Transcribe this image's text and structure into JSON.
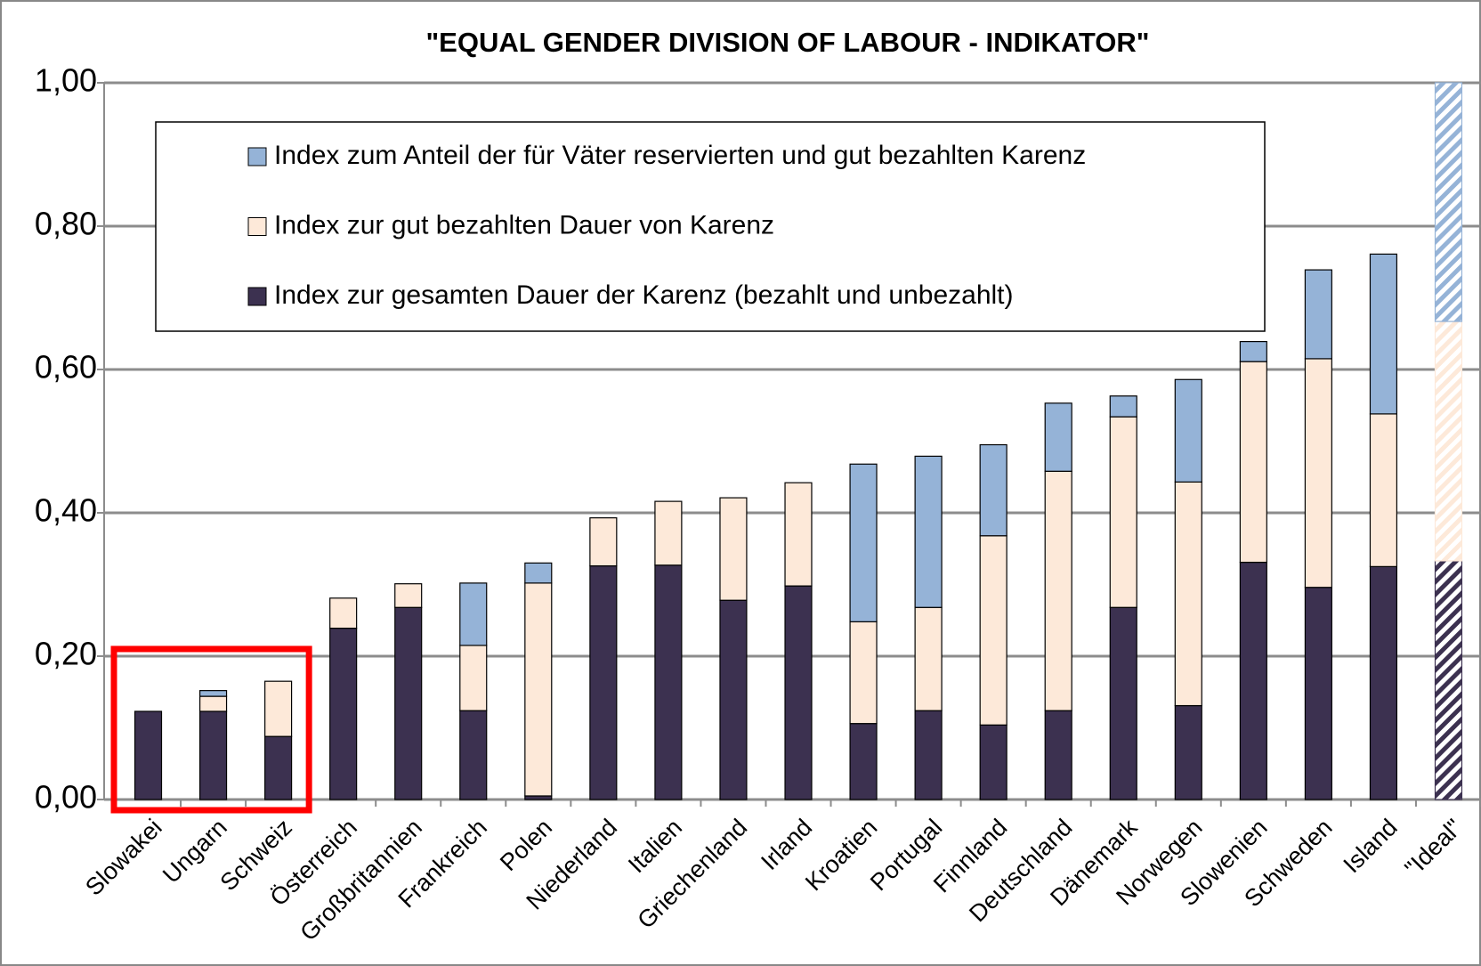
{
  "chart_data": {
    "type": "stacked_bar",
    "title": "\"EQUAL GENDER DIVISION OF LABOUR - INDIKATOR\"",
    "categories": [
      "Slowakei",
      "Ungarn",
      "Schweiz",
      "Österreich",
      "Großbritannien",
      "Frankreich",
      "Polen",
      "Niederland",
      "Italien",
      "Griechenland",
      "Irland",
      "Kroatien",
      "Portugal",
      "Finnland",
      "Deutschland",
      "Dänemark",
      "Norwegen",
      "Slowenien",
      "Schweden",
      "Island",
      "\"Ideal\""
    ],
    "series": [
      {
        "name": "Index zur gesamten Dauer der Karenz (bezahlt und unbezahlt)",
        "color": "#3c3150",
        "values": [
          0.123,
          0.123,
          0.088,
          0.239,
          0.268,
          0.124,
          0.005,
          0.326,
          0.327,
          0.278,
          0.298,
          0.106,
          0.124,
          0.104,
          0.124,
          0.268,
          0.131,
          0.331,
          0.296,
          0.325,
          0.333
        ]
      },
      {
        "name": "Index zur gut bezahlten Dauer von Karenz",
        "color": "#fde9d9",
        "values": [
          0,
          0.021,
          0.077,
          0.042,
          0.033,
          0.091,
          0.297,
          0.067,
          0.089,
          0.143,
          0.144,
          0.142,
          0.144,
          0.264,
          0.334,
          0.266,
          0.312,
          0.28,
          0.319,
          0.213,
          0.334
        ]
      },
      {
        "name": "Index zum Anteil der für Väter reservierten und gut bezahlten Karenz",
        "color": "#95b3d7",
        "values": [
          0,
          0.008,
          0,
          0,
          0,
          0.087,
          0.028,
          0,
          0,
          0,
          0,
          0.22,
          0.211,
          0.127,
          0.095,
          0.029,
          0.143,
          0.028,
          0.124,
          0.223,
          0.333
        ]
      }
    ],
    "hatched": [
      false,
      false,
      false,
      false,
      false,
      false,
      false,
      false,
      false,
      false,
      false,
      false,
      false,
      false,
      false,
      false,
      false,
      false,
      false,
      false,
      true
    ],
    "ylim": [
      0,
      1
    ],
    "yticks": [
      {
        "value": 0,
        "label": "0,00"
      },
      {
        "value": 0.2,
        "label": "0,20"
      },
      {
        "value": 0.4,
        "label": "0,40"
      },
      {
        "value": 0.6,
        "label": "0,60"
      },
      {
        "value": 0.8,
        "label": "0,80"
      },
      {
        "value": 1,
        "label": "1,00"
      }
    ],
    "grid": true
  }
}
